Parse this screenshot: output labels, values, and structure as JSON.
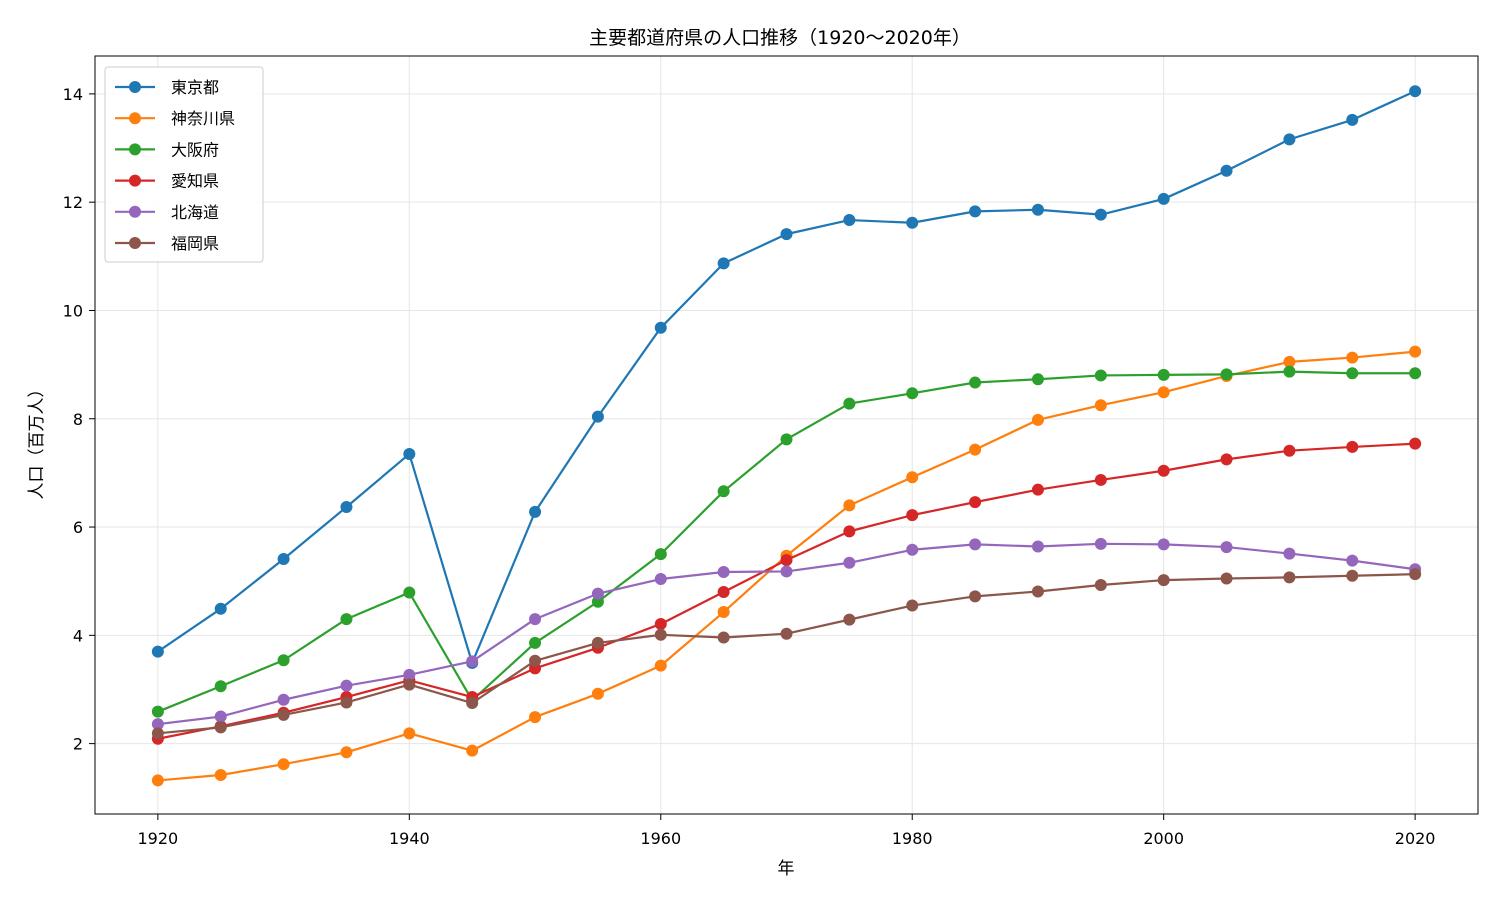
{
  "chart_data": {
    "type": "line",
    "title": "主要都道府県の人口推移（1920〜2020年）",
    "xlabel": "年",
    "ylabel": "人口（百万人）",
    "xlim": [
      1915,
      2025
    ],
    "ylim": [
      0.7,
      14.7
    ],
    "xticks": [
      1920,
      1940,
      1960,
      1980,
      2000,
      2020
    ],
    "yticks": [
      2,
      4,
      6,
      8,
      10,
      12,
      14
    ],
    "grid": true,
    "legend_position": "top-left",
    "x": [
      1920,
      1925,
      1930,
      1935,
      1940,
      1945,
      1950,
      1955,
      1960,
      1965,
      1970,
      1975,
      1980,
      1985,
      1990,
      1995,
      2000,
      2005,
      2010,
      2015,
      2020
    ],
    "series": [
      {
        "name": "東京都",
        "color": "#1f77b4",
        "values": [
          3.7,
          4.49,
          5.41,
          6.37,
          7.35,
          3.49,
          6.28,
          8.04,
          9.68,
          10.87,
          11.41,
          11.67,
          11.62,
          11.83,
          11.86,
          11.77,
          12.06,
          12.58,
          13.16,
          13.52,
          14.05
        ]
      },
      {
        "name": "神奈川県",
        "color": "#ff7f0e",
        "values": [
          1.32,
          1.42,
          1.62,
          1.84,
          2.19,
          1.87,
          2.49,
          2.92,
          3.44,
          4.43,
          5.47,
          6.4,
          6.92,
          7.43,
          7.98,
          8.25,
          8.49,
          8.79,
          9.05,
          9.13,
          9.24
        ]
      },
      {
        "name": "大阪府",
        "color": "#2ca02c",
        "values": [
          2.59,
          3.06,
          3.54,
          4.3,
          4.79,
          2.8,
          3.86,
          4.62,
          5.5,
          6.66,
          7.62,
          8.28,
          8.47,
          8.67,
          8.73,
          8.8,
          8.81,
          8.82,
          8.87,
          8.84,
          8.84
        ]
      },
      {
        "name": "愛知県",
        "color": "#d62728",
        "values": [
          2.09,
          2.32,
          2.57,
          2.86,
          3.17,
          2.86,
          3.39,
          3.77,
          4.21,
          4.8,
          5.39,
          5.92,
          6.22,
          6.46,
          6.69,
          6.87,
          7.04,
          7.25,
          7.41,
          7.48,
          7.54
        ]
      },
      {
        "name": "北海道",
        "color": "#9467bd",
        "values": [
          2.36,
          2.5,
          2.81,
          3.07,
          3.27,
          3.52,
          4.3,
          4.77,
          5.04,
          5.17,
          5.18,
          5.34,
          5.58,
          5.68,
          5.64,
          5.69,
          5.68,
          5.63,
          5.51,
          5.38,
          5.22
        ]
      },
      {
        "name": "福岡県",
        "color": "#8c564b",
        "values": [
          2.19,
          2.3,
          2.53,
          2.76,
          3.09,
          2.75,
          3.53,
          3.86,
          4.01,
          3.96,
          4.03,
          4.29,
          4.55,
          4.72,
          4.81,
          4.93,
          5.02,
          5.05,
          5.07,
          5.1,
          5.13
        ]
      }
    ]
  }
}
